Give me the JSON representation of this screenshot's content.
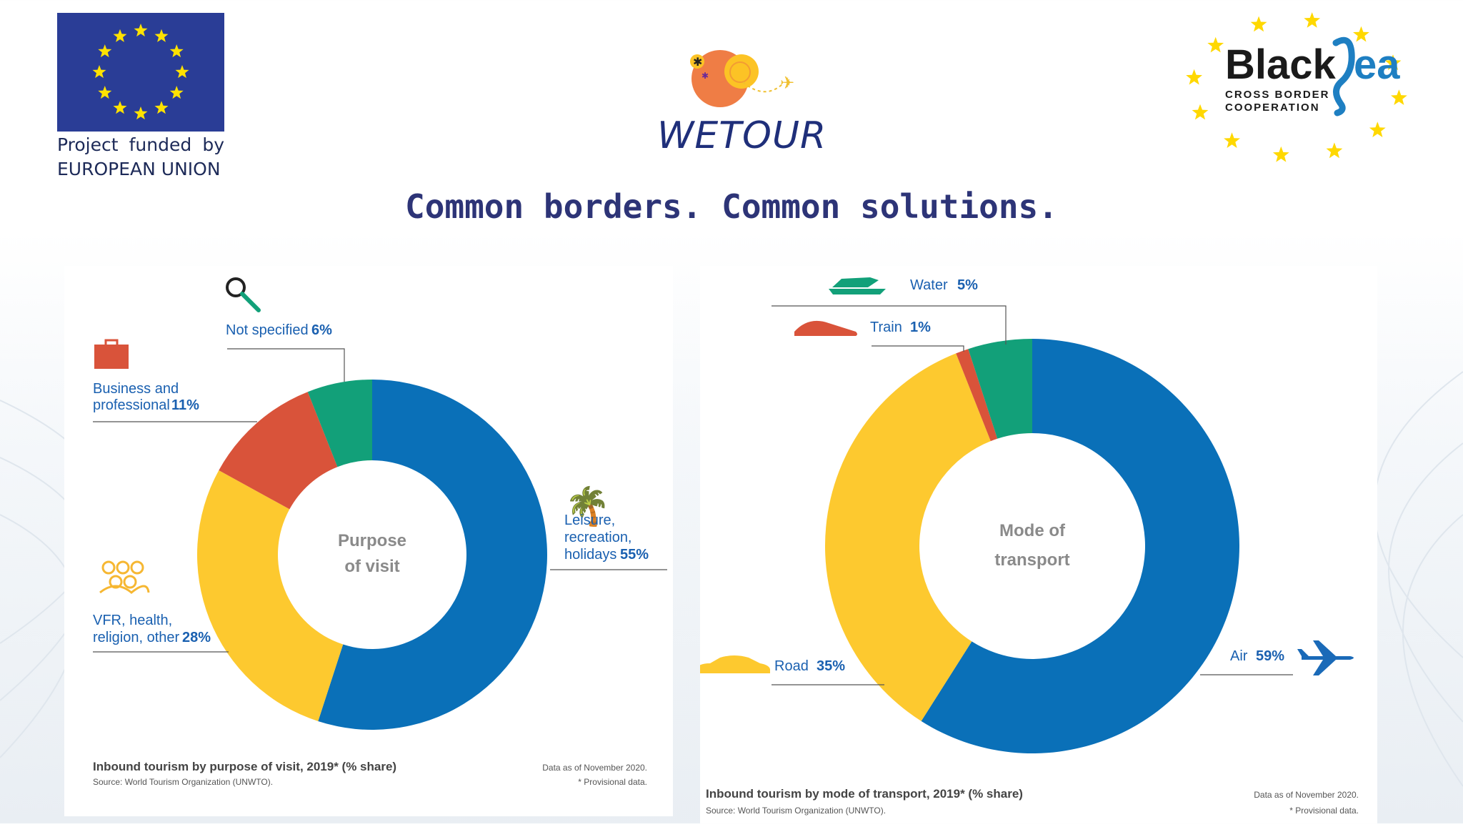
{
  "header": {
    "eu_caption_line1": [
      "Project",
      "funded",
      "by"
    ],
    "eu_caption_line2": "EUROPEAN UNION",
    "wetour": "WETOUR",
    "blacksea_title_a": "Black",
    "blacksea_title_b": "ea",
    "blacksea_sub1": "CROSS BORDER",
    "blacksea_sub2": "COOPERATION",
    "tagline": "Common borders. Common solutions."
  },
  "colors": {
    "blue": "#0a70b8",
    "yellow": "#fdc92f",
    "red": "#d9533a",
    "green": "#12a079",
    "label": "#1a60b0"
  },
  "chart_data": [
    {
      "type": "pie",
      "center_label": [
        "Purpose",
        "of visit"
      ],
      "categories": [
        "Leisure, recreation, holidays",
        "VFR, health, religion, other",
        "Business and professional",
        "Not specified"
      ],
      "values": [
        55,
        28,
        11,
        6
      ],
      "unit": "%",
      "label_lines": [
        [
          "Leisure,",
          "recreation,",
          "holidays"
        ],
        [
          "VFR, health,",
          "religion, other"
        ],
        [
          "Business and",
          "professional"
        ],
        [
          "Not specified"
        ]
      ],
      "title": "Inbound tourism by purpose of visit, 2019* (% share)",
      "source": "Source: World Tourism Organization (UNWTO).",
      "note1": "Data as of November 2020.",
      "note2": "* Provisional data."
    },
    {
      "type": "pie",
      "center_label": [
        "Mode of",
        "transport"
      ],
      "categories": [
        "Air",
        "Road",
        "Train",
        "Water"
      ],
      "values": [
        59,
        35,
        1,
        5
      ],
      "unit": "%",
      "label_lines": [
        [
          "Air"
        ],
        [
          "Road"
        ],
        [
          "Train"
        ],
        [
          "Water"
        ]
      ],
      "title": "Inbound tourism by mode of transport, 2019* (% share)",
      "source": "Source: World Tourism Organization (UNWTO).",
      "note1": "Data as of November 2020.",
      "note2": "* Provisional data."
    }
  ]
}
